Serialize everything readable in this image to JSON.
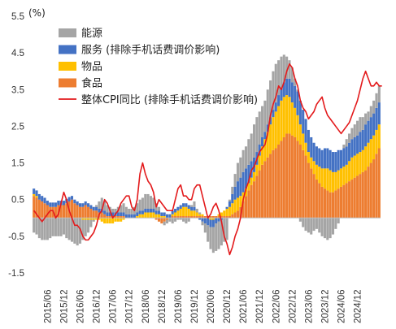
{
  "chart_data": {
    "type": "bar",
    "unit_label": "(%)",
    "ylim": [
      -1.5,
      5.5
    ],
    "y_ticks": [
      "5.5",
      "4.5",
      "3.5",
      "2.5",
      "1.5",
      "0.5",
      "-0.5",
      "-1.5"
    ],
    "y_tick_values": [
      5.5,
      4.5,
      3.5,
      2.5,
      1.5,
      0.5,
      -0.5,
      -1.5
    ],
    "x_tick_labels": [
      "2015/06",
      "2015/12",
      "2016/06",
      "2016/12",
      "2017/06",
      "2017/12",
      "2018/06",
      "2018/12",
      "2019/06",
      "2019/12",
      "2020/06",
      "2020/12",
      "2021/06",
      "2021/12",
      "2022/06",
      "2022/12",
      "2023/06",
      "2023/12",
      "2024/06",
      "2024/12"
    ],
    "stacked": true,
    "months_start": "2015/01",
    "series": [
      {
        "name": "能源",
        "kind": "bar",
        "color": "#a5a5a5",
        "values": [
          -0.4,
          -0.45,
          -0.55,
          -0.6,
          -0.6,
          -0.6,
          -0.55,
          -0.5,
          -0.5,
          -0.5,
          -0.5,
          -0.45,
          -0.55,
          -0.6,
          -0.65,
          -0.7,
          -0.75,
          -0.7,
          -0.55,
          -0.45,
          -0.35,
          -0.2,
          -0.05,
          0.05,
          0.2,
          0.3,
          0.25,
          0.2,
          0.15,
          0.1,
          0.1,
          0.15,
          0.2,
          0.25,
          0.2,
          0.15,
          0.15,
          0.2,
          0.25,
          0.3,
          0.35,
          0.4,
          0.4,
          0.35,
          0.3,
          0.2,
          0.1,
          0.0,
          -0.1,
          -0.1,
          -0.1,
          -0.15,
          -0.1,
          -0.05,
          -0.05,
          -0.1,
          -0.15,
          -0.1,
          0.05,
          0.15,
          0.1,
          0.05,
          -0.1,
          -0.25,
          -0.45,
          -0.6,
          -0.7,
          -0.75,
          -0.75,
          -0.7,
          -0.65,
          -0.6,
          0.05,
          0.2,
          0.35,
          0.5,
          0.55,
          0.6,
          0.6,
          0.7,
          0.75,
          0.9,
          0.95,
          0.9,
          0.85,
          0.85,
          0.95,
          1.0,
          1.05,
          1.05,
          0.95,
          0.85,
          0.75,
          0.6,
          0.5,
          0.4,
          0.2,
          0.05,
          -0.1,
          -0.25,
          -0.35,
          -0.4,
          -0.45,
          -0.35,
          -0.3,
          -0.4,
          -0.5,
          -0.55,
          -0.6,
          -0.55,
          -0.45,
          -0.3,
          -0.15,
          0.0,
          0.1,
          0.2,
          0.25,
          0.3,
          0.35,
          0.4,
          0.4,
          0.35,
          0.3,
          0.25,
          0.3,
          0.35,
          0.4,
          0.45
        ]
      },
      {
        "name": "服务 (排除手机话费调价影响)",
        "kind": "bar",
        "color": "#4472c4",
        "values": [
          0.15,
          0.15,
          0.15,
          0.15,
          0.15,
          0.12,
          0.12,
          0.12,
          0.12,
          0.12,
          0.12,
          0.12,
          0.12,
          0.12,
          0.1,
          0.1,
          0.1,
          0.1,
          0.1,
          0.1,
          0.1,
          0.1,
          0.1,
          0.1,
          0.1,
          0.1,
          0.1,
          0.1,
          0.1,
          0.1,
          0.1,
          0.1,
          0.1,
          0.1,
          0.1,
          0.1,
          0.1,
          0.1,
          0.1,
          0.1,
          0.1,
          0.1,
          0.1,
          0.1,
          0.1,
          0.1,
          0.1,
          0.1,
          0.1,
          0.1,
          0.1,
          0.1,
          0.1,
          0.1,
          0.1,
          0.1,
          0.1,
          0.1,
          0.1,
          0.1,
          0.0,
          -0.05,
          -0.1,
          -0.15,
          -0.2,
          -0.2,
          -0.2,
          -0.15,
          -0.1,
          -0.05,
          0.0,
          0.05,
          0.15,
          0.25,
          0.35,
          0.45,
          0.5,
          0.55,
          0.55,
          0.5,
          0.45,
          0.4,
          0.35,
          0.3,
          0.25,
          0.2,
          0.2,
          0.2,
          0.2,
          0.25,
          0.3,
          0.35,
          0.4,
          0.45,
          0.5,
          0.55,
          0.6,
          0.65,
          0.65,
          0.65,
          0.65,
          0.6,
          0.55,
          0.5,
          0.5,
          0.5,
          0.5,
          0.55,
          0.55,
          0.55,
          0.55,
          0.55,
          0.55,
          0.5,
          0.5,
          0.5,
          0.5,
          0.5,
          0.5,
          0.5,
          0.55,
          0.55,
          0.6,
          0.6,
          0.6,
          0.6,
          0.6,
          0.6
        ]
      },
      {
        "name": "物品",
        "kind": "bar",
        "color": "#ffc000",
        "values": [
          0.05,
          0.05,
          0.0,
          0.0,
          0.0,
          0.0,
          0.0,
          0.0,
          0.0,
          0.0,
          0.0,
          0.0,
          0.0,
          0.0,
          0.0,
          0.0,
          0.0,
          0.0,
          -0.05,
          -0.05,
          -0.05,
          -0.05,
          -0.05,
          -0.05,
          -0.05,
          -0.1,
          -0.15,
          -0.15,
          -0.15,
          -0.15,
          -0.1,
          -0.1,
          -0.1,
          -0.05,
          0.0,
          0.0,
          0.0,
          0.0,
          0.05,
          0.1,
          0.1,
          0.15,
          0.15,
          0.15,
          0.15,
          0.1,
          0.1,
          0.05,
          0.05,
          0.0,
          0.0,
          0.05,
          0.1,
          0.15,
          0.2,
          0.25,
          0.25,
          0.2,
          0.15,
          0.15,
          0.1,
          0.05,
          0.05,
          0.0,
          0.0,
          -0.05,
          -0.05,
          0.0,
          0.05,
          0.1,
          0.15,
          0.2,
          0.25,
          0.3,
          0.35,
          0.35,
          0.3,
          0.25,
          0.2,
          0.2,
          0.2,
          0.25,
          0.3,
          0.4,
          0.5,
          0.6,
          0.7,
          0.8,
          0.9,
          1.0,
          1.05,
          1.1,
          1.1,
          1.05,
          1.0,
          0.9,
          0.8,
          0.7,
          0.55,
          0.45,
          0.35,
          0.3,
          0.3,
          0.35,
          0.4,
          0.45,
          0.5,
          0.55,
          0.6,
          0.6,
          0.55,
          0.5,
          0.5,
          0.5,
          0.5,
          0.5,
          0.55,
          0.6,
          0.6,
          0.6,
          0.6,
          0.6,
          0.65,
          0.65,
          0.65,
          0.65,
          0.65,
          0.65
        ]
      },
      {
        "name": "食品",
        "kind": "bar",
        "color": "#ed7d31",
        "values": [
          0.6,
          0.55,
          0.5,
          0.45,
          0.4,
          0.35,
          0.3,
          0.3,
          0.3,
          0.35,
          0.35,
          0.35,
          0.4,
          0.45,
          0.5,
          0.4,
          0.35,
          0.3,
          0.3,
          0.35,
          0.3,
          0.25,
          0.2,
          0.2,
          0.15,
          0.15,
          0.1,
          0.05,
          0.05,
          0.05,
          0.05,
          0.05,
          0.05,
          0.05,
          0.0,
          0.0,
          0.0,
          0.0,
          0.0,
          0.0,
          0.0,
          0.0,
          0.0,
          0.0,
          0.0,
          -0.05,
          -0.1,
          -0.15,
          -0.1,
          -0.05,
          0.0,
          0.05,
          0.05,
          0.05,
          0.05,
          0.05,
          0.05,
          0.05,
          0.05,
          0.05,
          0.05,
          0.05,
          0.05,
          0.05,
          0.05,
          0.05,
          0.05,
          0.05,
          0.05,
          0.05,
          0.05,
          0.05,
          0.05,
          0.1,
          0.15,
          0.2,
          0.3,
          0.45,
          0.6,
          0.75,
          0.9,
          1.0,
          1.15,
          1.3,
          1.45,
          1.55,
          1.65,
          1.75,
          1.85,
          1.9,
          2.0,
          2.1,
          2.2,
          2.3,
          2.3,
          2.25,
          2.2,
          2.1,
          2.0,
          1.85,
          1.7,
          1.5,
          1.35,
          1.2,
          1.05,
          0.95,
          0.85,
          0.8,
          0.75,
          0.7,
          0.7,
          0.75,
          0.8,
          0.85,
          0.9,
          0.95,
          1.0,
          1.05,
          1.1,
          1.15,
          1.2,
          1.25,
          1.3,
          1.4,
          1.5,
          1.6,
          1.75,
          1.9
        ]
      },
      {
        "name": "整体CPI同比 (排除手机话费调价影响)",
        "kind": "line",
        "color": "#e31a1c",
        "values": [
          0.2,
          0.1,
          0.0,
          -0.1,
          0.0,
          0.1,
          0.2,
          0.2,
          0.0,
          0.1,
          0.4,
          0.7,
          0.5,
          0.2,
          0.0,
          -0.2,
          -0.2,
          -0.3,
          -0.5,
          -0.6,
          -0.6,
          -0.5,
          -0.4,
          -0.2,
          0.1,
          0.2,
          0.5,
          0.4,
          0.2,
          0.0,
          0.1,
          0.2,
          0.4,
          0.5,
          0.6,
          0.6,
          0.3,
          0.2,
          0.5,
          1.2,
          1.5,
          1.2,
          1.0,
          0.9,
          0.7,
          0.3,
          0.5,
          0.4,
          0.3,
          0.2,
          0.2,
          0.2,
          0.5,
          0.8,
          0.9,
          0.6,
          0.6,
          0.5,
          0.5,
          0.8,
          0.9,
          0.9,
          0.6,
          0.3,
          0.0,
          0.1,
          0.3,
          0.4,
          0.2,
          -0.1,
          -0.5,
          -0.7,
          -1.0,
          -0.8,
          -0.5,
          -0.3,
          0.0,
          0.5,
          0.8,
          1.0,
          1.3,
          1.4,
          1.6,
          1.8,
          1.9,
          2.0,
          2.3,
          2.8,
          3.1,
          3.3,
          3.6,
          3.5,
          3.7,
          4.0,
          4.2,
          4.1,
          3.8,
          3.6,
          3.2,
          3.0,
          2.9,
          2.7,
          2.8,
          2.9,
          3.1,
          3.2,
          3.3,
          3.0,
          2.8,
          2.7,
          2.6,
          2.5,
          2.4,
          2.3,
          2.4,
          2.5,
          2.6,
          2.8,
          3.0,
          3.2,
          3.5,
          3.8,
          4.0,
          3.8,
          3.6,
          3.6,
          3.7,
          3.6,
          3.6
        ]
      }
    ]
  },
  "legend": [
    {
      "label": "能源",
      "color": "#a5a5a5",
      "kind": "box"
    },
    {
      "label": "服务 (排除手机话费调价影响)",
      "color": "#4472c4",
      "kind": "box"
    },
    {
      "label": "物品",
      "color": "#ffc000",
      "kind": "box"
    },
    {
      "label": "食品",
      "color": "#ed7d31",
      "kind": "box"
    },
    {
      "label": "整体CPI同比 (排除手机话费调价影响)",
      "color": "#e31a1c",
      "kind": "line"
    }
  ]
}
